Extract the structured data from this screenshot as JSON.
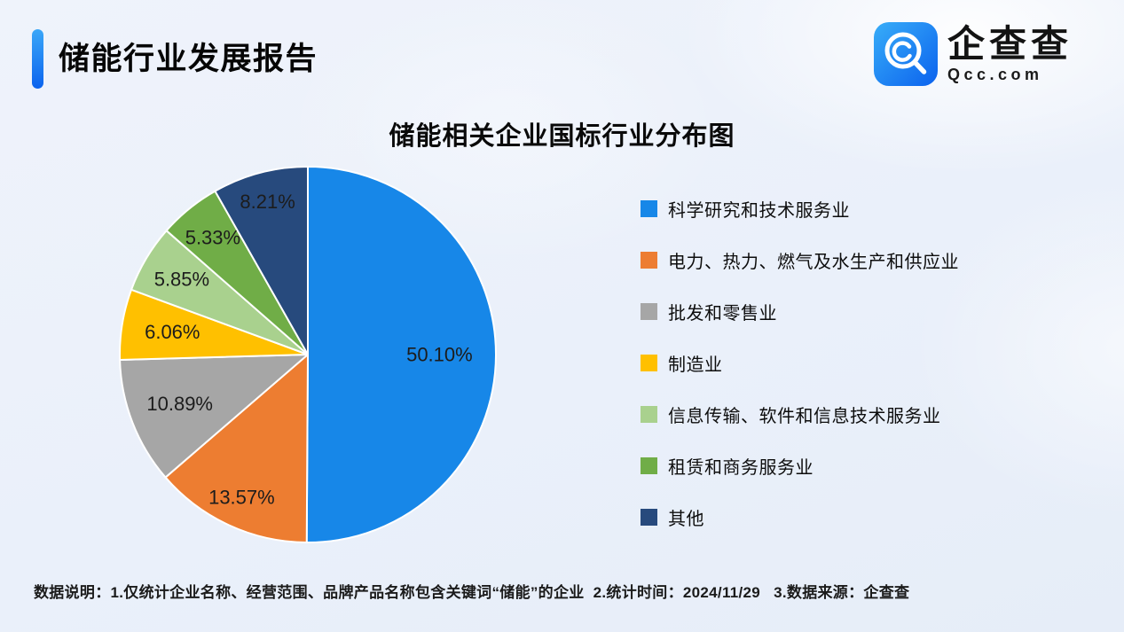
{
  "page": {
    "report_title": "储能行业发展报告",
    "footer_note": "数据说明：1.仅统计企业名称、经营范围、品牌产品名称包含关键词“储能”的企业  2.统计时间：2024/11/29   3.数据来源：企查查"
  },
  "logo": {
    "brand_cn": "企查查",
    "brand_en": "Qcc.com"
  },
  "chart_data": {
    "type": "pie",
    "title": "储能相关企业国标行业分布图",
    "start_angle_deg": 0,
    "direction": "clockwise",
    "legend_position": "right",
    "labels_inside": true,
    "slice_border_color": "#ffffff",
    "label_color": "#1c1c1c",
    "slices": [
      {
        "name": "科学研究和技术服务业",
        "value": 50.1,
        "label": "50.10%",
        "color": "#1787E8"
      },
      {
        "name": "电力、热力、燃气及水生产和供应业",
        "value": 13.57,
        "label": "13.57%",
        "color": "#ED7D31"
      },
      {
        "name": "批发和零售业",
        "value": 10.89,
        "label": "10.89%",
        "color": "#A6A6A6"
      },
      {
        "name": "制造业",
        "value": 6.06,
        "label": "6.06%",
        "color": "#FFC000"
      },
      {
        "name": "信息传输、软件和信息技术服务业",
        "value": 5.85,
        "label": "5.85%",
        "color": "#A9D18E"
      },
      {
        "name": "租赁和商务服务业",
        "value": 5.33,
        "label": "5.33%",
        "color": "#70AD47"
      },
      {
        "name": "其他",
        "value": 8.21,
        "label": "8.21%",
        "color": "#274A7D"
      }
    ]
  }
}
